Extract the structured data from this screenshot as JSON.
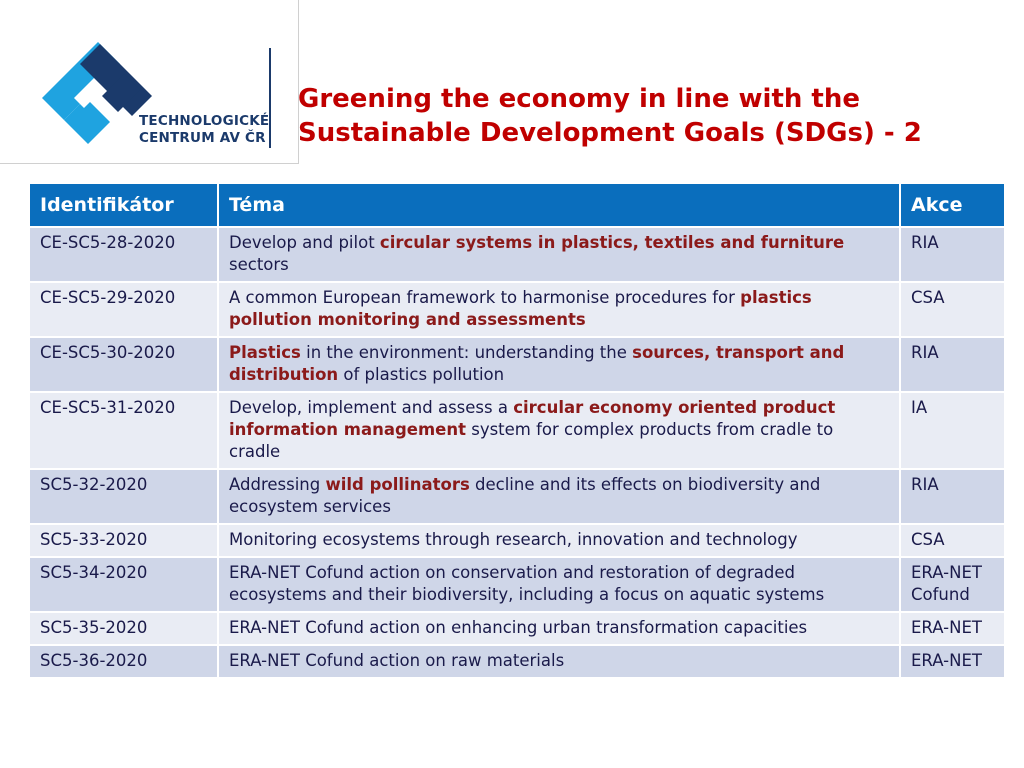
{
  "logo": {
    "line1": "TECHNOLOGICKÉ",
    "line2": "CENTRUM AV ČR",
    "colors": {
      "blue": "#1fa3e0",
      "navy": "#1b3a6b"
    }
  },
  "title": {
    "line1": "Greening the economy in line with the",
    "line2": "Sustainable Development Goals (SDGs) - 2"
  },
  "table": {
    "headers": [
      "Identifikátor",
      "Téma",
      "Akce"
    ],
    "rows": [
      {
        "id": "CE-SC5-28-2020",
        "akce": "RIA",
        "tema": [
          {
            "t": "Develop and pilot ",
            "b": false
          },
          {
            "t": "circular systems in plastics, textiles and furniture",
            "b": true
          },
          {
            "t": " sectors",
            "b": false
          }
        ]
      },
      {
        "id": "CE-SC5-29-2020",
        "akce": "CSA",
        "tema": [
          {
            "t": "A common European framework to harmonise procedures for ",
            "b": false
          },
          {
            "t": "plastics pollution monitoring and assessments",
            "b": true
          }
        ]
      },
      {
        "id": "CE-SC5-30-2020",
        "akce": "RIA",
        "tema": [
          {
            "t": "Plastics",
            "b": true
          },
          {
            "t": " in the environment: understanding the ",
            "b": false
          },
          {
            "t": "sources, transport and distribution",
            "b": true
          },
          {
            "t": " of plastics pollution",
            "b": false
          }
        ]
      },
      {
        "id": "CE-SC5-31-2020",
        "akce": "IA",
        "tema": [
          {
            "t": "Develop, implement and assess a ",
            "b": false
          },
          {
            "t": "circular economy oriented product information management",
            "b": true
          },
          {
            "t": " system for complex products from cradle to cradle",
            "b": false
          }
        ]
      },
      {
        "id": "SC5-32-2020",
        "akce": "RIA",
        "tema": [
          {
            "t": "Addressing ",
            "b": false
          },
          {
            "t": "wild pollinators",
            "b": true
          },
          {
            "t": " decline and its effects on biodiversity and ecosystem services",
            "b": false
          }
        ]
      },
      {
        "id": "SC5-33-2020",
        "akce": "CSA",
        "tema": [
          {
            "t": "Monitoring ecosystems through research, innovation and technology",
            "b": false
          }
        ]
      },
      {
        "id": "SC5-34-2020",
        "akce": "ERA-NET Cofund",
        "tema": [
          {
            "t": "ERA-NET Cofund action on conservation and restoration of degraded ecosystems and their biodiversity, including a focus on aquatic systems",
            "b": false
          }
        ]
      },
      {
        "id": "SC5-35-2020",
        "akce": "ERA-NET",
        "tema": [
          {
            "t": "ERA-NET Cofund action on enhancing urban transformation capacities",
            "b": false
          }
        ]
      },
      {
        "id": "SC5-36-2020",
        "akce": "ERA-NET",
        "tema": [
          {
            "t": "ERA-NET Cofund action on raw materials",
            "b": false
          }
        ]
      }
    ]
  },
  "colors": {
    "header_bg": "#0a6ebd",
    "title": "#c00000",
    "highlight": "#8b1a1a",
    "row_dark": "#cfd6e8",
    "row_light": "#e9ecf4"
  }
}
